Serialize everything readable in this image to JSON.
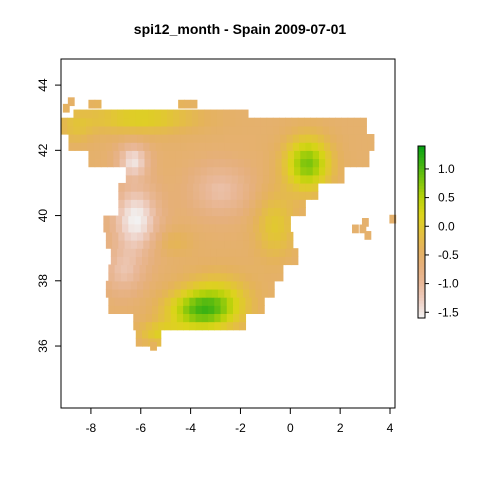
{
  "title": "spi12_month - Spain 2009-07-01",
  "map": {
    "x_ticks": [
      "-8",
      "-6",
      "-4",
      "-2",
      "0",
      "2",
      "4"
    ],
    "x_tick_values": [
      -8,
      -6,
      -4,
      -2,
      0,
      2,
      4
    ],
    "y_ticks": [
      "36",
      "38",
      "40",
      "42",
      "44"
    ],
    "y_tick_values": [
      36,
      38,
      40,
      42,
      44
    ],
    "xlim": [
      -9.2,
      4.2
    ],
    "ylim": [
      34.1,
      44.8
    ],
    "cell_size_deg": 0.25
  },
  "legend": {
    "ticks": [
      "1.0",
      "0.5",
      "0.0",
      "-0.5",
      "-1.0",
      "-1.5"
    ],
    "tick_values": [
      1.0,
      0.5,
      0.0,
      -0.5,
      -1.0,
      -1.5
    ],
    "range": [
      -1.6,
      1.4
    ],
    "colors": [
      "#f2f2f2",
      "#eecfc3",
      "#e9b898",
      "#e6b07d",
      "#e5b25e",
      "#e3c23c",
      "#dcd41a",
      "#b7d20a",
      "#79c40d",
      "#3eb313",
      "#05a113"
    ]
  },
  "colors": {
    "frame": "#000000",
    "background": "#ffffff"
  }
}
